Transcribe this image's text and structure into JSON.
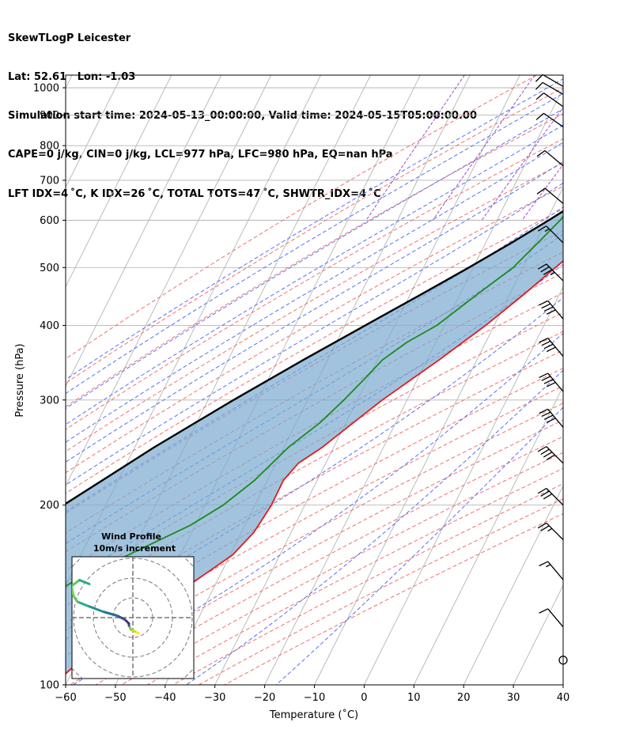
{
  "header": {
    "line1": "SkewTLogP Leicester",
    "line2": "Lat: 52.61   Lon: -1.03",
    "line3": "Simulation start time: 2024-05-13_00:00:00, Valid time: 2024-05-15T05:00:00.00",
    "line4": "CAPE=0 j/kg, CIN=0 j/kg, LCL=977 hPa, LFC=980 hPa, EQ=nan hPa",
    "line5": "LFT IDX=4 ˚C, K IDX=26 ˚C, TOTAL TOTS=47 ˚C, SHWTR_IDX=4 ˚C"
  },
  "colors": {
    "temperature": "#e31a1c",
    "dewpoint": "#1a8a1a",
    "parcel": "#000000",
    "cape_fill": "#7aa9d0",
    "dry_adiabat": "#f0706f",
    "moist_adiabat": "#5a6ff0",
    "mixing_ratio": "#a04fc8",
    "isotherm": "#b5b5b5"
  },
  "chart_data": {
    "type": "skewt",
    "xlabel": "Temperature (˚C)",
    "ylabel": "Pressure (hPa)",
    "xlim": [
      -60,
      40
    ],
    "ylim": [
      1050,
      100
    ],
    "x_ticks": [
      "−60",
      "−50",
      "−40",
      "−30",
      "−20",
      "−10",
      "0",
      "10",
      "20",
      "30",
      "40"
    ],
    "x_tick_values": [
      -60,
      -50,
      -40,
      -30,
      -20,
      -10,
      0,
      10,
      20,
      30,
      40
    ],
    "y_ticks": [
      "100",
      "200",
      "300",
      "400",
      "500",
      "600",
      "700",
      "800",
      "900",
      "1000"
    ],
    "y_tick_values": [
      100,
      200,
      300,
      400,
      500,
      600,
      700,
      800,
      900,
      1000
    ],
    "grid": true,
    "series": [
      {
        "key": "temperature",
        "p": [
          990,
          975,
          950,
          925,
          900,
          850,
          800,
          750,
          700,
          650,
          600,
          550,
          500,
          450,
          400,
          350,
          300,
          275,
          250,
          235,
          220,
          200,
          180,
          165,
          150,
          140,
          130,
          120,
          110,
          100
        ],
        "t": [
          14,
          14.5,
          14.2,
          13,
          11.8,
          10.2,
          9.2,
          8.2,
          6.2,
          4.6,
          2.8,
          0,
          -3.5,
          -7.2,
          -11.7,
          -17.6,
          -25,
          -28.5,
          -32.3,
          -35.5,
          -36.8,
          -36.7,
          -37.5,
          -39.5,
          -44.2,
          -47.7,
          -51.5,
          -56,
          -59.4,
          -62.5
        ]
      },
      {
        "key": "dewpoint",
        "p": [
          990,
          975,
          950,
          925,
          900,
          850,
          800,
          750,
          700,
          650,
          600,
          550,
          500,
          450,
          400,
          375,
          350,
          325,
          300,
          275,
          250,
          220,
          200,
          185,
          165,
          150,
          130,
          115,
          100
        ],
        "t": [
          13.6,
          13.2,
          12.6,
          11.2,
          9.4,
          6.1,
          3.1,
          0.8,
          -3.2,
          -6,
          -7.3,
          -9.5,
          -12,
          -16.6,
          -21.5,
          -25.8,
          -29,
          -30.7,
          -32.7,
          -35.2,
          -39.1,
          -42.6,
          -46.4,
          -51,
          -60.5,
          -68.5,
          -76.5,
          -81,
          -86
        ]
      },
      {
        "key": "parcel",
        "p": [
          990,
          977,
          950,
          900,
          850,
          800,
          750,
          700,
          650,
          600,
          550,
          500,
          450,
          400,
          350,
          300,
          250,
          200,
          150,
          100
        ],
        "t": [
          13.8,
          13.5,
          12.3,
          10.2,
          7.9,
          5.3,
          2.3,
          -1.1,
          -5,
          -9.6,
          -14.8,
          -20.9,
          -27.9,
          -35.9,
          -44.9,
          -54.9,
          -66.1,
          -78.5,
          -93,
          -110
        ]
      }
    ],
    "wind_barbs": [
      {
        "p": 110,
        "calm": true
      },
      {
        "p": 125,
        "speed_kt": 10,
        "direction_deg": 320
      },
      {
        "p": 150,
        "speed_kt": 15,
        "direction_deg": 320
      },
      {
        "p": 175,
        "speed_kt": 25,
        "direction_deg": 315
      },
      {
        "p": 200,
        "speed_kt": 30,
        "direction_deg": 315
      },
      {
        "p": 235,
        "speed_kt": 40,
        "direction_deg": 315
      },
      {
        "p": 270,
        "speed_kt": 40,
        "direction_deg": 320
      },
      {
        "p": 310,
        "speed_kt": 40,
        "direction_deg": 320
      },
      {
        "p": 355,
        "speed_kt": 40,
        "direction_deg": 320
      },
      {
        "p": 410,
        "speed_kt": 40,
        "direction_deg": 320
      },
      {
        "p": 475,
        "speed_kt": 35,
        "direction_deg": 315
      },
      {
        "p": 550,
        "speed_kt": 15,
        "direction_deg": 315
      },
      {
        "p": 640,
        "speed_kt": 10,
        "direction_deg": 310
      },
      {
        "p": 740,
        "speed_kt": 10,
        "direction_deg": 310
      },
      {
        "p": 860,
        "speed_kt": 10,
        "direction_deg": 305
      },
      {
        "p": 930,
        "speed_kt": 10,
        "direction_deg": 305
      },
      {
        "p": 975,
        "speed_kt": 10,
        "direction_deg": 300
      },
      {
        "p": 1005,
        "speed_kt": 10,
        "direction_deg": 300
      }
    ],
    "hodograph": {
      "title": "Wind Profile",
      "subtitle": "10m/s increment",
      "u": [
        3,
        1,
        -1,
        -2,
        -2,
        -4,
        -8,
        -15,
        -23,
        -28,
        -30,
        -31,
        -27,
        -22
      ],
      "v": [
        -8,
        -7,
        -6,
        -4,
        -3,
        -1,
        1,
        3,
        6,
        8,
        11,
        16,
        19,
        17
      ]
    }
  }
}
